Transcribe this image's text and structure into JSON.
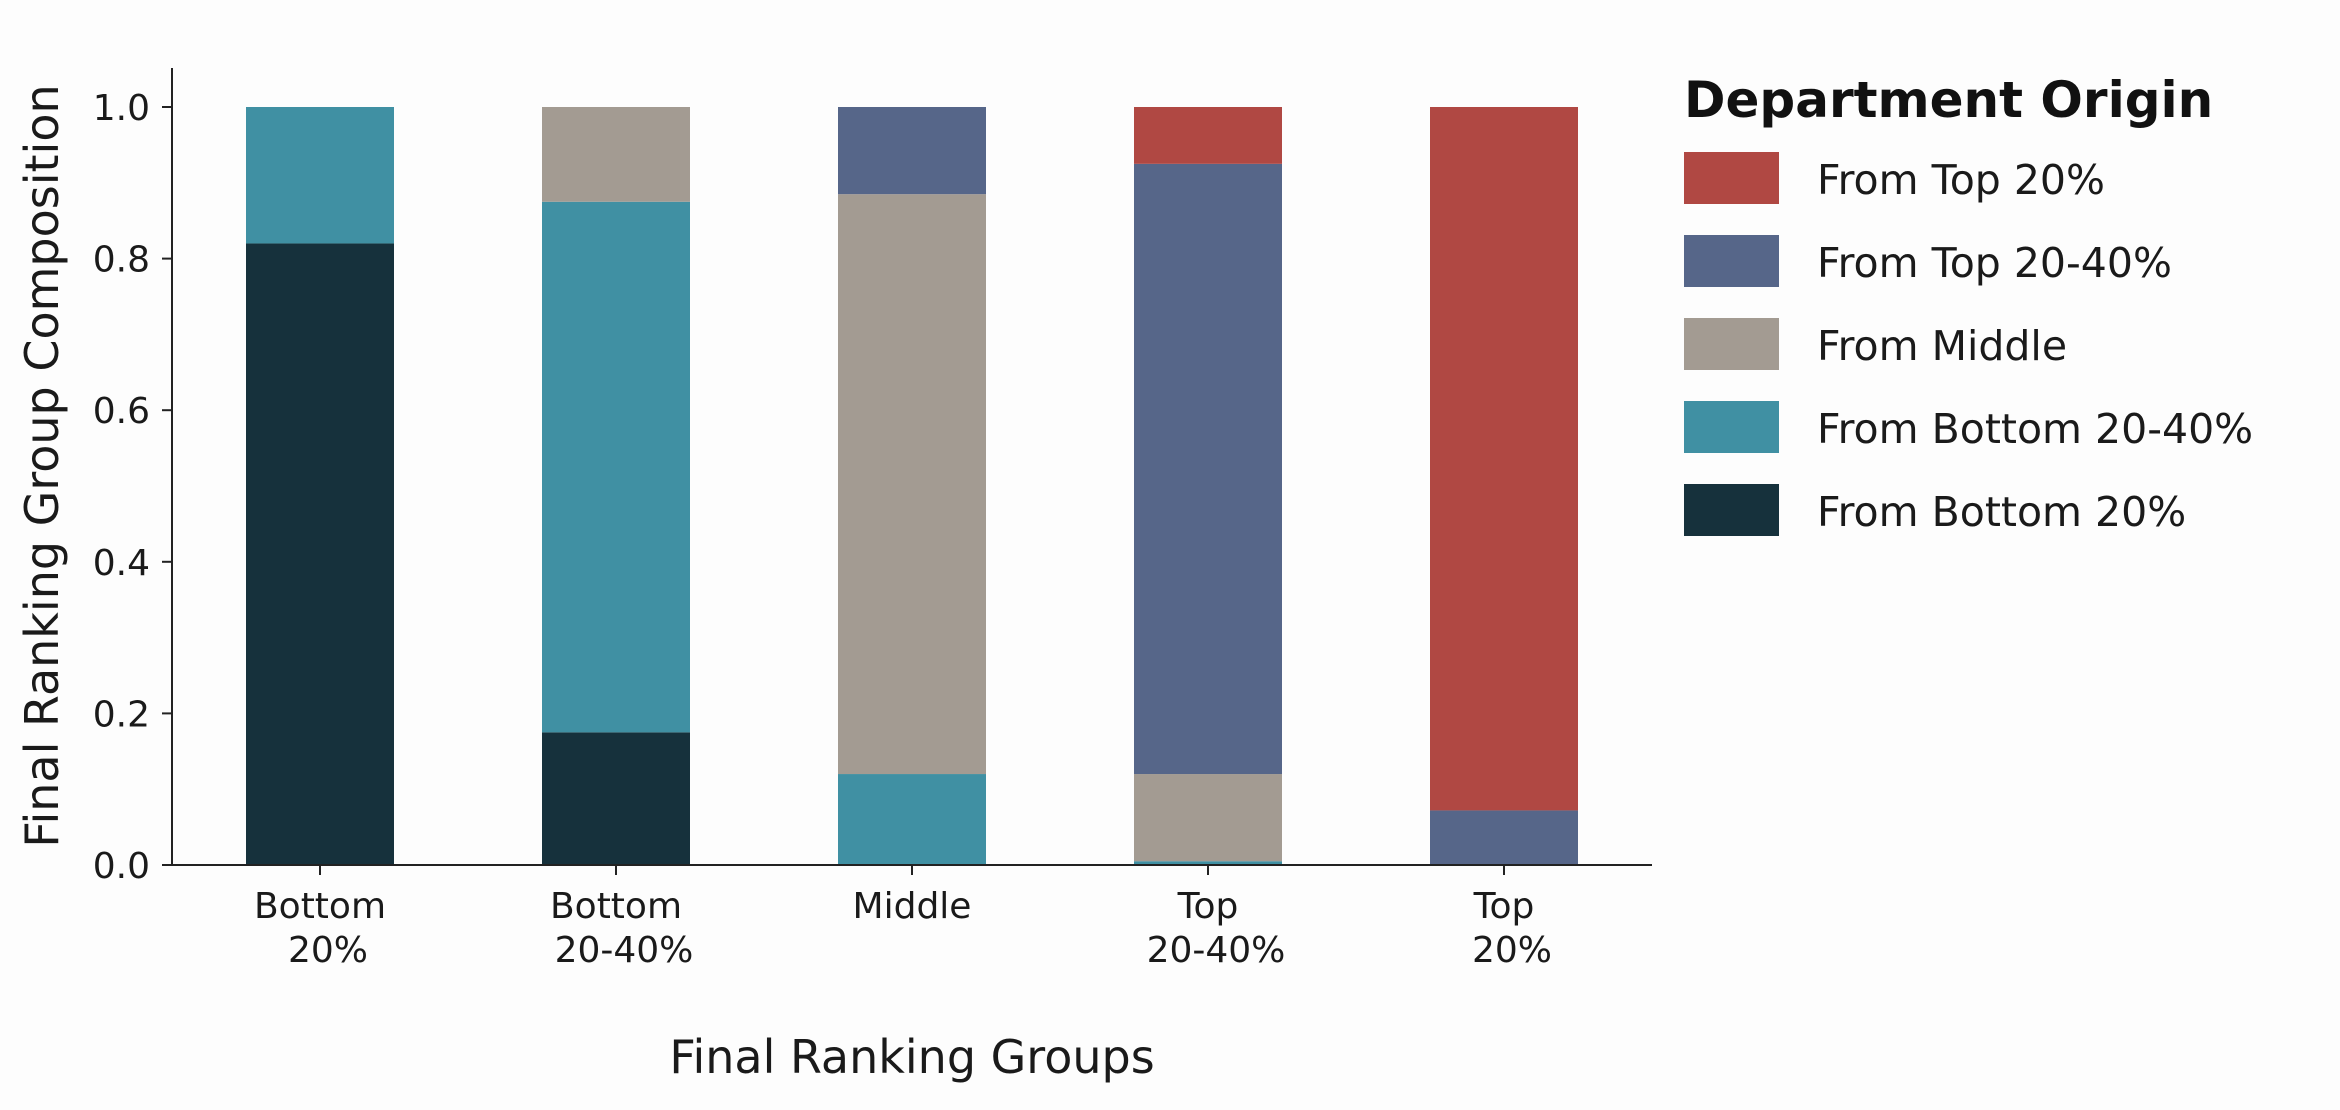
{
  "chart_data": {
    "type": "bar",
    "stacked": true,
    "categories": [
      [
        "Bottom",
        "20%"
      ],
      [
        "Bottom",
        "20-40%"
      ],
      [
        "Middle"
      ],
      [
        "Top",
        "20-40%"
      ],
      [
        "Top",
        "20%"
      ]
    ],
    "series": [
      {
        "name": "From Bottom 20%",
        "color": "#16313c",
        "values": [
          0.82,
          0.175,
          0.0,
          0.0,
          0.0
        ]
      },
      {
        "name": "From Bottom 20-40%",
        "color": "#4090a3",
        "values": [
          0.18,
          0.7,
          0.12,
          0.005,
          0.0
        ]
      },
      {
        "name": "From Middle",
        "color": "#a39b92",
        "values": [
          0.0,
          0.125,
          0.765,
          0.115,
          0.0
        ]
      },
      {
        "name": "From Top 20-40%",
        "color": "#566689",
        "values": [
          0.0,
          0.0,
          0.115,
          0.805,
          0.072
        ]
      },
      {
        "name": "From Top 20%",
        "color": "#b04843",
        "values": [
          0.0,
          0.0,
          0.0,
          0.075,
          0.928
        ]
      }
    ],
    "xlabel": "Final Ranking Groups",
    "ylabel": "Final Ranking Group Composition",
    "ylim": [
      0,
      1.05
    ],
    "yticks": [
      0.0,
      0.2,
      0.4,
      0.6,
      0.8,
      1.0
    ],
    "ytick_labels": [
      "0.0",
      "0.2",
      "0.4",
      "0.6",
      "0.8",
      "1.0"
    ],
    "grid": false,
    "legend": {
      "title": "Department Origin",
      "placement": "right",
      "order": [
        "From Top 20%",
        "From Top 20-40%",
        "From Middle",
        "From Bottom 20-40%",
        "From Bottom 20%"
      ]
    }
  }
}
